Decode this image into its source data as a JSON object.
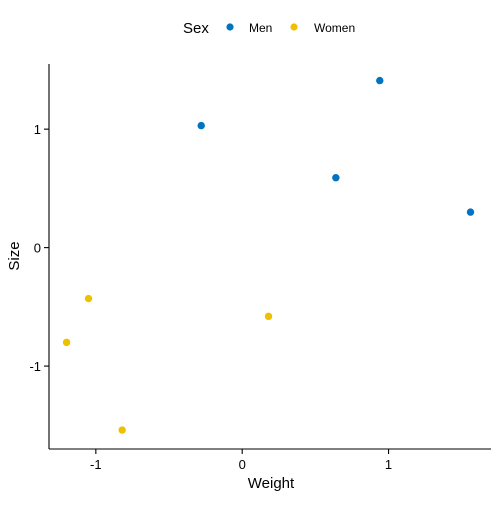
{
  "chart_data": {
    "type": "scatter",
    "xlabel": "Weight",
    "ylabel": "Size",
    "xlim": [
      -1.32,
      1.7
    ],
    "ylim": [
      -1.7,
      1.55
    ],
    "x_ticks": [
      -1,
      0,
      1
    ],
    "y_ticks": [
      -1,
      0,
      1
    ],
    "x_tick_labels": [
      "-1",
      "0",
      "1"
    ],
    "y_tick_labels": [
      "-1",
      "0",
      "1"
    ],
    "grid": false,
    "legend": {
      "title": "Sex",
      "position": "top"
    },
    "series": [
      {
        "name": "Men",
        "color": "#0073C2",
        "points": [
          {
            "x": -0.28,
            "y": 1.03
          },
          {
            "x": 0.94,
            "y": 1.41
          },
          {
            "x": 0.64,
            "y": 0.59
          },
          {
            "x": 1.56,
            "y": 0.3
          }
        ]
      },
      {
        "name": "Women",
        "color": "#EFC000",
        "points": [
          {
            "x": -1.05,
            "y": -0.43
          },
          {
            "x": -1.2,
            "y": -0.8
          },
          {
            "x": 0.18,
            "y": -0.58
          },
          {
            "x": -0.82,
            "y": -1.54
          }
        ]
      }
    ]
  }
}
